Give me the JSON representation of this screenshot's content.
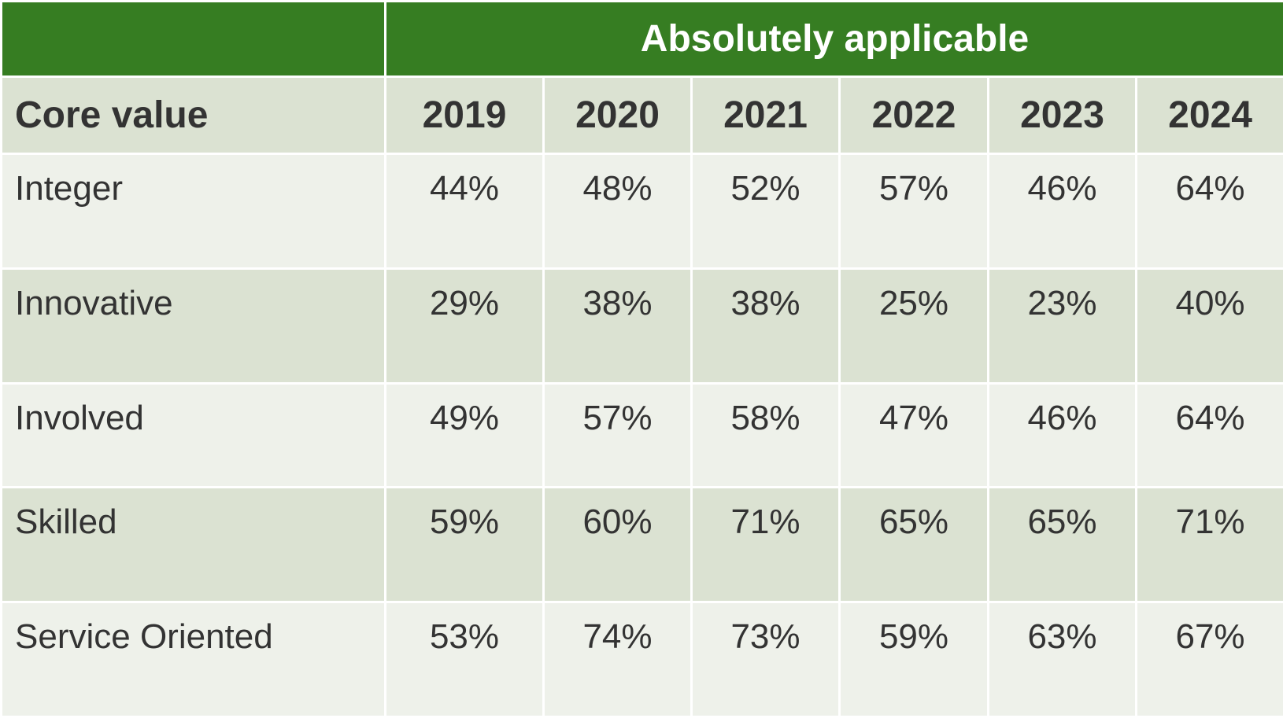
{
  "chart_data": {
    "type": "table",
    "group_header": "Absolutely applicable",
    "row_header_label": "Core value",
    "columns": [
      "2019",
      "2020",
      "2021",
      "2022",
      "2023",
      "2024"
    ],
    "rows": [
      {
        "label": "Integer",
        "values": [
          "44%",
          "48%",
          "52%",
          "57%",
          "46%",
          "64%"
        ]
      },
      {
        "label": "Innovative",
        "values": [
          "29%",
          "38%",
          "38%",
          "25%",
          "23%",
          "40%"
        ]
      },
      {
        "label": "Involved",
        "values": [
          "49%",
          "57%",
          "58%",
          "47%",
          "46%",
          "64%"
        ]
      },
      {
        "label": "Skilled",
        "values": [
          "59%",
          "60%",
          "71%",
          "65%",
          "65%",
          "71%"
        ]
      },
      {
        "label": "Service Oriented",
        "values": [
          "53%",
          "74%",
          "73%",
          "59%",
          "63%",
          "67%"
        ]
      }
    ]
  },
  "colors": {
    "header_green": "#367d22",
    "band_dark": "#dbe2d2",
    "band_light": "#eef1ea",
    "text": "#333333"
  }
}
